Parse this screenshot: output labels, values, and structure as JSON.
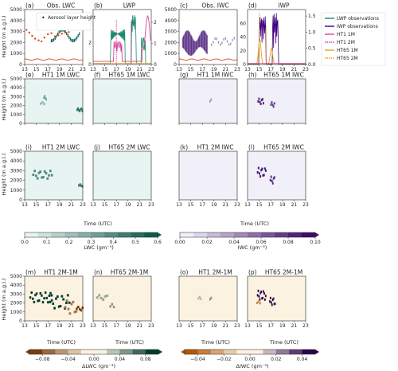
{
  "figure": {
    "y_axis_label": "Height (m a.g.l.)",
    "time_axis_label": "Time (UTC)",
    "lwc_colorbar_label": "LWC (gm⁻³)",
    "iwc_colorbar_label": "IWC (gm⁻³)",
    "dlwc_colorbar_label": "ΔLWC (gm⁻³)",
    "diwc_colorbar_label": "ΔIWC (gm⁻³)",
    "aerosol_legend": "Aerosol layer height",
    "lwp_legend_entries": [
      "LWP observations",
      "IWP observations",
      "HT1 1M",
      "HT1 2M",
      "HT65 1M",
      "HT65 2M"
    ]
  },
  "colors": {
    "lwc_low": "#e8f4f1",
    "lwc_high": "#0b5d4e",
    "iwc_low": "#f1eff8",
    "iwc_high": "#3d0a6e",
    "dlwc_neg": "#7f3b08",
    "dlwc_pos": "#003c30",
    "diwc_neg": "#b35806",
    "diwc_pos": "#2d004b",
    "diff_bg": "#fbf2df",
    "lwp_obs": "#1b8a6b",
    "iwp_obs": "#3f007d",
    "ht1": "#d6419a",
    "ht65": "#e8a21a",
    "aerosol": "#e0441c"
  },
  "chart_data": [
    {
      "id": "a",
      "type": "line",
      "title": "Obs. LWC",
      "ylim": [
        0,
        5000
      ],
      "xlim": [
        13,
        23
      ],
      "x_ticks": [
        "13",
        "15",
        "17",
        "19",
        "21",
        "23"
      ],
      "y_ticks": [
        "0",
        "1000",
        "2000",
        "3000",
        "4000",
        "5000"
      ],
      "series": [
        {
          "name": "Aerosol layer height",
          "x": [
            13.3,
            13.8,
            14.3,
            14.8,
            15.4,
            15.9,
            16.4,
            17.0,
            17.6,
            18.2,
            18.8,
            19.4,
            20.0,
            20.6,
            21.2,
            21.8,
            22.4
          ],
          "y": [
            3150,
            2900,
            2600,
            2350,
            2200,
            2100,
            2450,
            2750,
            2850,
            2550,
            2650,
            2800,
            2900,
            2950,
            3250,
            3450,
            3300
          ]
        }
      ]
    },
    {
      "id": "b",
      "type": "line",
      "title": "LWP",
      "ylim": [
        0,
        5
      ],
      "y2lim": [
        0,
        2.6
      ],
      "xlim": [
        13,
        23
      ],
      "x_ticks": [
        "13",
        "15",
        "17",
        "19",
        "21",
        "23"
      ],
      "y_ticks": [
        "0",
        "2",
        "4"
      ],
      "y2_ticks": [
        "0",
        "1",
        "2"
      ]
    },
    {
      "id": "c",
      "type": "line",
      "title": "Obs. IWC",
      "ylim": [
        0,
        5000
      ],
      "xlim": [
        13,
        23
      ],
      "x_ticks": [
        "13",
        "15",
        "17",
        "19",
        "21",
        "23"
      ],
      "y_ticks": [
        "0",
        "1000",
        "2000",
        "3000",
        "4000",
        "5000"
      ]
    },
    {
      "id": "d",
      "type": "line",
      "title": "IWP",
      "ylim": [
        0,
        80
      ],
      "y2lim": [
        0,
        1.7
      ],
      "xlim": [
        13,
        23
      ],
      "x_ticks": [
        "13",
        "15",
        "17",
        "19",
        "21",
        "23"
      ],
      "y_ticks": [
        "0",
        "20",
        "40",
        "60"
      ],
      "y2_ticks": [
        "0.0",
        "0.5",
        "1.0",
        "1.5"
      ]
    },
    {
      "id": "e",
      "type": "heatmap",
      "title": "HT1 1M LWC",
      "ylim": [
        0,
        5000
      ],
      "xlim": [
        13,
        23
      ]
    },
    {
      "id": "f",
      "type": "heatmap",
      "title": "HT65 1M LWC",
      "ylim": [
        0,
        5000
      ],
      "xlim": [
        13,
        23
      ]
    },
    {
      "id": "g",
      "type": "heatmap",
      "title": "HT1 1M IWC",
      "ylim": [
        0,
        5000
      ],
      "xlim": [
        13,
        23
      ]
    },
    {
      "id": "h",
      "type": "heatmap",
      "title": "HT65 1M IWC",
      "ylim": [
        0,
        5000
      ],
      "xlim": [
        13,
        23
      ]
    },
    {
      "id": "i",
      "type": "heatmap",
      "title": "HT1 2M LWC",
      "ylim": [
        0,
        5000
      ],
      "xlim": [
        13,
        23
      ]
    },
    {
      "id": "j",
      "type": "heatmap",
      "title": "HT65 2M LWC",
      "ylim": [
        0,
        5000
      ],
      "xlim": [
        13,
        23
      ]
    },
    {
      "id": "k",
      "type": "heatmap",
      "title": "HT1 2M IWC",
      "ylim": [
        0,
        5000
      ],
      "xlim": [
        13,
        23
      ]
    },
    {
      "id": "l",
      "type": "heatmap",
      "title": "HT65 2M IWC",
      "ylim": [
        0,
        5000
      ],
      "xlim": [
        13,
        23
      ]
    },
    {
      "id": "m",
      "type": "heatmap",
      "title": "HT1 2M-1M",
      "ylim": [
        0,
        5000
      ],
      "xlim": [
        13,
        23
      ]
    },
    {
      "id": "n",
      "type": "heatmap",
      "title": "HT65 2M-1M",
      "ylim": [
        0,
        5000
      ],
      "xlim": [
        13,
        23
      ]
    },
    {
      "id": "o",
      "type": "heatmap",
      "title": "HT1 2M-1M",
      "ylim": [
        0,
        5000
      ],
      "xlim": [
        13,
        23
      ]
    },
    {
      "id": "p",
      "type": "heatmap",
      "title": "HT65 2M-1M",
      "ylim": [
        0,
        5000
      ],
      "xlim": [
        13,
        23
      ]
    },
    {
      "id": "cb_lwc",
      "type": "colorbar",
      "ticks": [
        "0.0",
        "0.1",
        "0.2",
        "0.3",
        "0.4",
        "0.5",
        "0.6"
      ],
      "range": [
        0,
        0.6
      ]
    },
    {
      "id": "cb_iwc",
      "type": "colorbar",
      "ticks": [
        "0.00",
        "0.02",
        "0.04",
        "0.06",
        "0.08",
        "0.10"
      ],
      "range": [
        0,
        0.1
      ]
    },
    {
      "id": "cb_dlwc",
      "type": "colorbar",
      "ticks": [
        "−0.08",
        "−0.04",
        "0.00",
        "0.04",
        "0.08"
      ],
      "range": [
        -0.1,
        0.1
      ]
    },
    {
      "id": "cb_diwc",
      "type": "colorbar",
      "ticks": [
        "−0.04",
        "−0.02",
        "0.00",
        "0.02",
        "0.04"
      ],
      "range": [
        -0.05,
        0.05
      ]
    }
  ]
}
